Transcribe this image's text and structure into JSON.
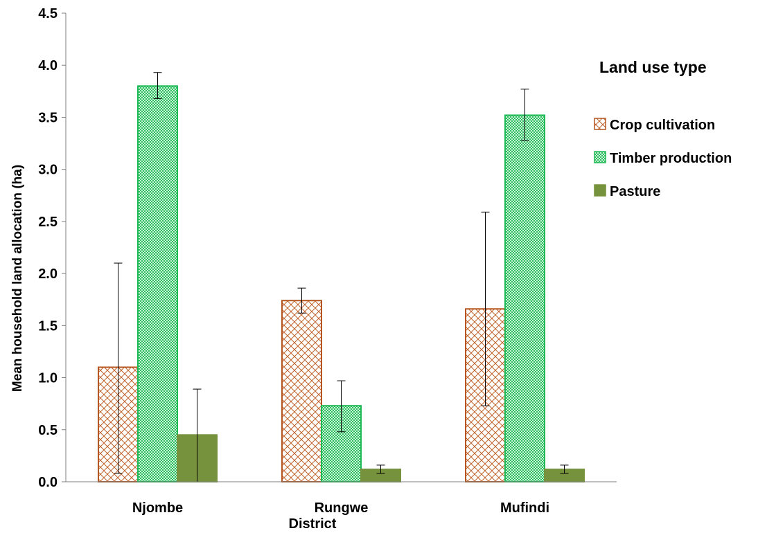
{
  "chart_data": {
    "type": "bar",
    "ylabel": "Mean household land allocation (ha)",
    "xlabel": "District",
    "ylim": [
      0,
      4.5
    ],
    "yticks": [
      0.0,
      0.5,
      1.0,
      1.5,
      2.0,
      2.5,
      3.0,
      3.5,
      4.0,
      4.5
    ],
    "ytick_labels": [
      "0.0",
      "0.5",
      "1.0",
      "1.5",
      "2.0",
      "2.5",
      "3.0",
      "3.5",
      "4.0",
      "4.5"
    ],
    "categories": [
      "Njombe",
      "Rungwe",
      "Mufindi"
    ],
    "legend": {
      "title": "Land use type",
      "placement": "right"
    },
    "grid": false,
    "series": [
      {
        "name": "Crop cultivation",
        "values": [
          1.1,
          1.74,
          1.66
        ],
        "err_low": [
          0.08,
          1.62,
          0.73
        ],
        "err_high": [
          2.1,
          1.86,
          2.59
        ],
        "pattern": "crosshatch",
        "color": "#b5551f"
      },
      {
        "name": "Timber production",
        "values": [
          3.8,
          0.73,
          3.52
        ],
        "err_low": [
          3.68,
          0.48,
          3.28
        ],
        "err_high": [
          3.93,
          0.97,
          3.77
        ],
        "pattern": "dots",
        "color": "#1db954"
      },
      {
        "name": "Pasture",
        "values": [
          0.45,
          0.12,
          0.12
        ],
        "err_low": [
          0.0,
          0.08,
          0.08
        ],
        "err_high": [
          0.89,
          0.16,
          0.16
        ],
        "pattern": "solid",
        "color": "#76923c"
      }
    ]
  }
}
